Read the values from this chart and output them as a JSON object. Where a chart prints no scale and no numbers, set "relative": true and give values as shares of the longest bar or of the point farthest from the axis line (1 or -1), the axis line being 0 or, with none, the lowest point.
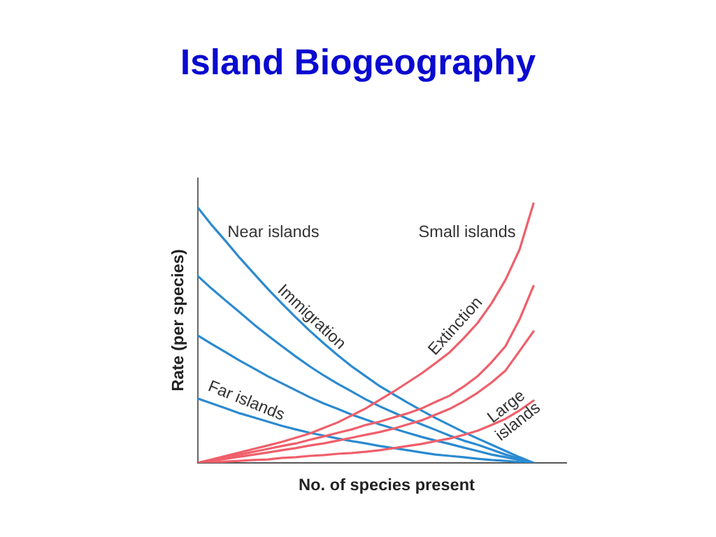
{
  "chart_data": {
    "type": "line",
    "title": "Island Biogeography",
    "xlabel": "No. of species present",
    "ylabel": "Rate (per species)",
    "relative": true,
    "categories": [
      null,
      null,
      null,
      null,
      null,
      null,
      null,
      null,
      null,
      null,
      null,
      null,
      null,
      null,
      null,
      null,
      null,
      null,
      null,
      null,
      null,
      null,
      null,
      null,
      null
    ],
    "series": [
      {
        "color": "#2b8ad0",
        "values": [
          0.984,
          0.916,
          0.854,
          0.79,
          0.73,
          0.671,
          0.615,
          0.561,
          0.509,
          0.461,
          0.415,
          0.372,
          0.334,
          0.296,
          0.264,
          0.232,
          0.202,
          0.173,
          0.146,
          0.119,
          0.094,
          0.07,
          0.046,
          0.022,
          0
        ]
      },
      {
        "color": "#2b8ad0",
        "values": [
          0.72,
          0.671,
          0.625,
          0.58,
          0.534,
          0.491,
          0.45,
          0.41,
          0.372,
          0.337,
          0.305,
          0.275,
          0.245,
          0.218,
          0.194,
          0.17,
          0.148,
          0.127,
          0.105,
          0.086,
          0.07,
          0.051,
          0.032,
          0.016,
          0
        ]
      },
      {
        "color": "#2b8ad0",
        "values": [
          0.491,
          0.458,
          0.426,
          0.394,
          0.364,
          0.334,
          0.307,
          0.28,
          0.253,
          0.229,
          0.208,
          0.186,
          0.167,
          0.148,
          0.132,
          0.116,
          0.1,
          0.086,
          0.073,
          0.059,
          0.046,
          0.032,
          0.022,
          0.011,
          0
        ]
      },
      {
        "color": "#2b8ad0",
        "values": [
          0.248,
          0.229,
          0.21,
          0.191,
          0.175,
          0.159,
          0.143,
          0.129,
          0.116,
          0.105,
          0.094,
          0.084,
          0.075,
          0.065,
          0.057,
          0.049,
          0.04,
          0.032,
          0.027,
          0.022,
          0.016,
          0.011,
          0.008,
          0.003,
          0
        ]
      },
      {
        "color": "#ef5f6b",
        "values": [
          0,
          0.013,
          0.027,
          0.04,
          0.054,
          0.067,
          0.081,
          0.097,
          0.113,
          0.135,
          0.156,
          0.183,
          0.21,
          0.243,
          0.275,
          0.31,
          0.345,
          0.385,
          0.426,
          0.48,
          0.539,
          0.615,
          0.706,
          0.822,
          1
        ]
      },
      {
        "color": "#ef5f6b",
        "values": [
          0,
          0.011,
          0.022,
          0.032,
          0.043,
          0.054,
          0.065,
          0.075,
          0.089,
          0.102,
          0.116,
          0.129,
          0.146,
          0.159,
          0.175,
          0.191,
          0.21,
          0.235,
          0.259,
          0.294,
          0.334,
          0.388,
          0.45,
          0.553,
          0.682
        ]
      },
      {
        "color": "#ef5f6b",
        "values": [
          0,
          0.008,
          0.016,
          0.024,
          0.032,
          0.04,
          0.049,
          0.057,
          0.067,
          0.075,
          0.086,
          0.097,
          0.108,
          0.119,
          0.132,
          0.148,
          0.164,
          0.186,
          0.208,
          0.237,
          0.27,
          0.31,
          0.356,
          0.431,
          0.507
        ]
      },
      {
        "color": "#ef5f6b",
        "values": [
          0,
          0.003,
          0.005,
          0.008,
          0.011,
          0.013,
          0.019,
          0.022,
          0.027,
          0.03,
          0.035,
          0.038,
          0.043,
          0.049,
          0.057,
          0.065,
          0.073,
          0.084,
          0.094,
          0.108,
          0.124,
          0.146,
          0.17,
          0.202,
          0.24
        ]
      }
    ],
    "annotations": [
      "Near islands",
      "Immigration",
      "Far islands",
      "Small islands",
      "Extinction",
      "Large islands"
    ]
  }
}
